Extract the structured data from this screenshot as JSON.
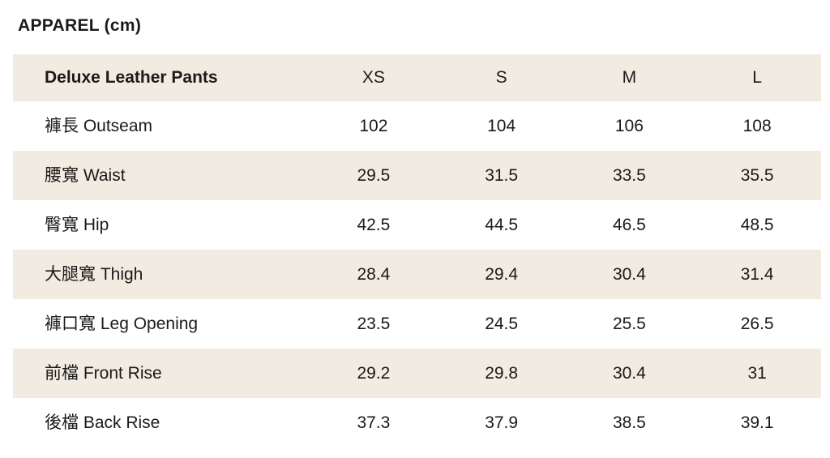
{
  "page": {
    "title": "APPAREL (cm)"
  },
  "colors": {
    "row_shade": "#f2ebe1",
    "text": "#1a1a1a",
    "background": "#ffffff"
  },
  "table": {
    "product": "Deluxe Leather Pants",
    "columns": [
      "XS",
      "S",
      "M",
      "L"
    ],
    "rows": [
      {
        "label": "褲長 Outseam",
        "values": [
          "102",
          "104",
          "106",
          "108"
        ]
      },
      {
        "label": "腰寬 Waist",
        "values": [
          "29.5",
          "31.5",
          "33.5",
          "35.5"
        ]
      },
      {
        "label": "臀寬 Hip",
        "values": [
          "42.5",
          "44.5",
          "46.5",
          "48.5"
        ]
      },
      {
        "label": "大腿寬 Thigh",
        "values": [
          "28.4",
          "29.4",
          "30.4",
          "31.4"
        ]
      },
      {
        "label": "褲口寬 Leg Opening",
        "values": [
          "23.5",
          "24.5",
          "25.5",
          "26.5"
        ]
      },
      {
        "label": "前檔 Front Rise",
        "values": [
          "29.2",
          "29.8",
          "30.4",
          "31"
        ]
      },
      {
        "label": "後檔 Back Rise",
        "values": [
          "37.3",
          "37.9",
          "38.5",
          "39.1"
        ]
      }
    ]
  }
}
